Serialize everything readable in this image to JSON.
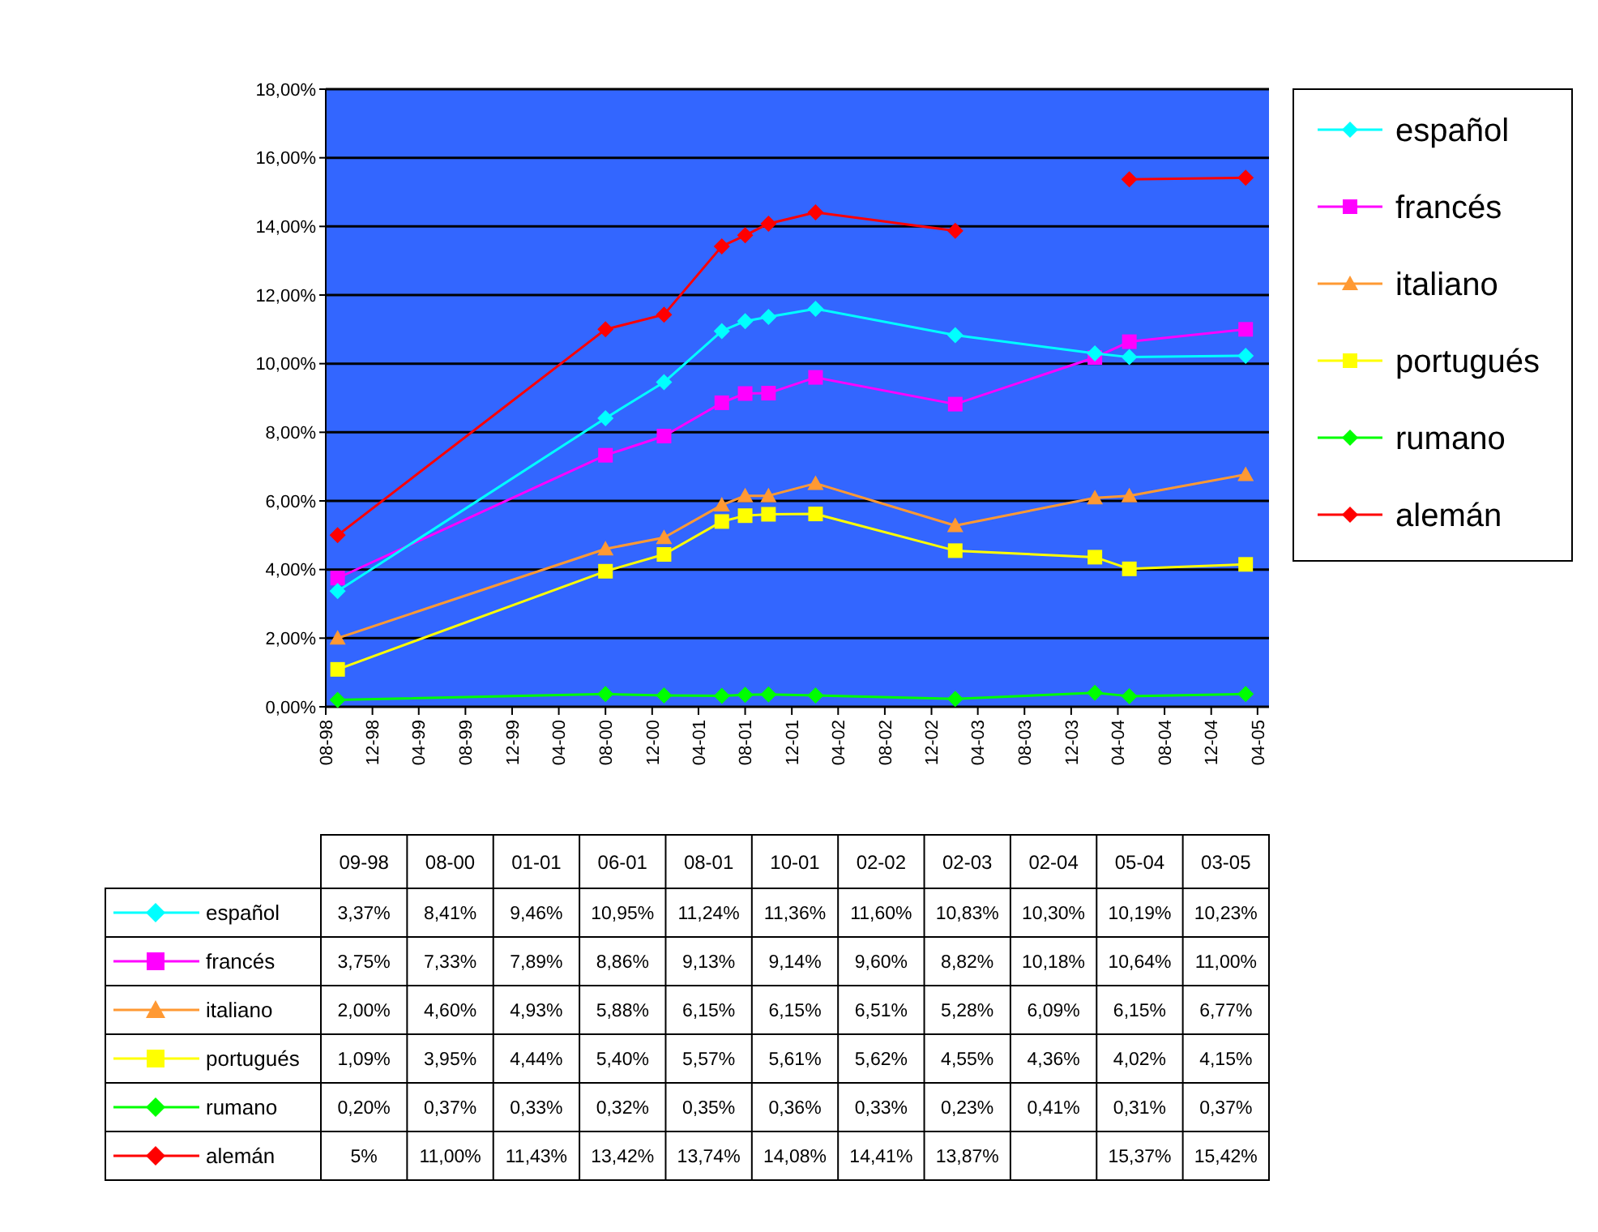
{
  "chart_data": [
    {
      "type": "line",
      "x": [
        "1998-09",
        "2000-08",
        "2001-01",
        "2001-06",
        "2001-08",
        "2001-10",
        "2002-02",
        "2003-02",
        "2004-02",
        "2004-05",
        "2005-03"
      ],
      "series": [
        {
          "name": "español",
          "color": "#00ffff",
          "marker": "diamond",
          "values": [
            3.37,
            8.41,
            9.46,
            10.95,
            11.24,
            11.36,
            11.6,
            10.83,
            10.3,
            10.19,
            10.23
          ]
        },
        {
          "name": "francés",
          "color": "#ff00ff",
          "marker": "square",
          "values": [
            3.75,
            7.33,
            7.89,
            8.86,
            9.13,
            9.14,
            9.6,
            8.82,
            10.18,
            10.64,
            11.0
          ]
        },
        {
          "name": "italiano",
          "color": "#ff9933",
          "marker": "triangle",
          "values": [
            2.0,
            4.6,
            4.93,
            5.88,
            6.15,
            6.15,
            6.51,
            5.28,
            6.09,
            6.15,
            6.77
          ]
        },
        {
          "name": "portugués",
          "color": "#ffff00",
          "marker": "square",
          "values": [
            1.09,
            3.95,
            4.44,
            5.4,
            5.57,
            5.61,
            5.62,
            4.55,
            4.36,
            4.02,
            4.15
          ]
        },
        {
          "name": "rumano",
          "color": "#00ff00",
          "marker": "diamond",
          "values": [
            0.2,
            0.37,
            0.33,
            0.32,
            0.35,
            0.36,
            0.33,
            0.23,
            0.41,
            0.31,
            0.37
          ]
        },
        {
          "name": "alemán",
          "color": "#ff0000",
          "marker": "diamond",
          "values": [
            5,
            11.0,
            11.43,
            13.42,
            13.74,
            14.08,
            14.41,
            13.87,
            null,
            15.37,
            15.42
          ]
        }
      ],
      "xlim": [
        "1998-08",
        "2005-05"
      ],
      "xticks": [
        {
          "value": "1998-08",
          "label": "08-98"
        },
        {
          "value": "1998-12",
          "label": "12-98"
        },
        {
          "value": "1999-04",
          "label": "04-99"
        },
        {
          "value": "1999-08",
          "label": "08-99"
        },
        {
          "value": "1999-12",
          "label": "12-99"
        },
        {
          "value": "2000-04",
          "label": "04-00"
        },
        {
          "value": "2000-08",
          "label": "08-00"
        },
        {
          "value": "2000-12",
          "label": "12-00"
        },
        {
          "value": "2001-04",
          "label": "04-01"
        },
        {
          "value": "2001-08",
          "label": "08-01"
        },
        {
          "value": "2001-12",
          "label": "12-01"
        },
        {
          "value": "2002-04",
          "label": "04-02"
        },
        {
          "value": "2002-08",
          "label": "08-02"
        },
        {
          "value": "2002-12",
          "label": "12-02"
        },
        {
          "value": "2003-04",
          "label": "04-03"
        },
        {
          "value": "2003-08",
          "label": "08-03"
        },
        {
          "value": "2003-12",
          "label": "12-03"
        },
        {
          "value": "2004-04",
          "label": "04-04"
        },
        {
          "value": "2004-08",
          "label": "08-04"
        },
        {
          "value": "2004-12",
          "label": "12-04"
        },
        {
          "value": "2005-04",
          "label": "04-05"
        }
      ],
      "ylim": [
        0,
        18
      ],
      "yticks": [
        {
          "value": 0,
          "label": "0,00%"
        },
        {
          "value": 2,
          "label": "2,00%"
        },
        {
          "value": 4,
          "label": "4,00%"
        },
        {
          "value": 6,
          "label": "6,00%"
        },
        {
          "value": 8,
          "label": "8,00%"
        },
        {
          "value": 10,
          "label": "10,00%"
        },
        {
          "value": 12,
          "label": "12,00%"
        },
        {
          "value": 14,
          "label": "14,00%"
        },
        {
          "value": 16,
          "label": "16,00%"
        },
        {
          "value": 18,
          "label": "18,00%"
        }
      ],
      "grid": "y",
      "legend": "right",
      "line_style": "solid"
    },
    {
      "type": "other",
      "categories": [
        "09-98",
        "08-00",
        "01-01",
        "06-01",
        "08-01",
        "10-01",
        "02-02",
        "02-03",
        "02-04",
        "05-04",
        "03-05"
      ],
      "series": [
        {
          "name": "español",
          "color": "#00ffff",
          "marker": "diamond",
          "values": [
            3.37,
            8.41,
            9.46,
            10.95,
            11.24,
            11.36,
            11.6,
            10.83,
            10.3,
            10.19,
            10.23
          ],
          "value_labels": [
            "3,37%",
            "8,41%",
            "9,46%",
            "10,95%",
            "11,24%",
            "11,36%",
            "11,60%",
            "10,83%",
            "10,30%",
            "10,19%",
            "10,23%"
          ]
        },
        {
          "name": "francés",
          "color": "#ff00ff",
          "marker": "square",
          "values": [
            3.75,
            7.33,
            7.89,
            8.86,
            9.13,
            9.14,
            9.6,
            8.82,
            10.18,
            10.64,
            11.0
          ],
          "value_labels": [
            "3,75%",
            "7,33%",
            "7,89%",
            "8,86%",
            "9,13%",
            "9,14%",
            "9,60%",
            "8,82%",
            "10,18%",
            "10,64%",
            "11,00%"
          ]
        },
        {
          "name": "italiano",
          "color": "#ff9933",
          "marker": "triangle",
          "values": [
            2.0,
            4.6,
            4.93,
            5.88,
            6.15,
            6.15,
            6.51,
            5.28,
            6.09,
            6.15,
            6.77
          ],
          "value_labels": [
            "2,00%",
            "4,60%",
            "4,93%",
            "5,88%",
            "6,15%",
            "6,15%",
            "6,51%",
            "5,28%",
            "6,09%",
            "6,15%",
            "6,77%"
          ]
        },
        {
          "name": "portugués",
          "color": "#ffff00",
          "marker": "square",
          "values": [
            1.09,
            3.95,
            4.44,
            5.4,
            5.57,
            5.61,
            5.62,
            4.55,
            4.36,
            4.02,
            4.15
          ],
          "value_labels": [
            "1,09%",
            "3,95%",
            "4,44%",
            "5,40%",
            "5,57%",
            "5,61%",
            "5,62%",
            "4,55%",
            "4,36%",
            "4,02%",
            "4,15%"
          ]
        },
        {
          "name": "rumano",
          "color": "#00ff00",
          "marker": "diamond",
          "values": [
            0.2,
            0.37,
            0.33,
            0.32,
            0.35,
            0.36,
            0.33,
            0.23,
            0.41,
            0.31,
            0.37
          ],
          "value_labels": [
            "0,20%",
            "0,37%",
            "0,33%",
            "0,32%",
            "0,35%",
            "0,36%",
            "0,33%",
            "0,23%",
            "0,41%",
            "0,31%",
            "0,37%"
          ]
        },
        {
          "name": "alemán",
          "color": "#ff0000",
          "marker": "diamond",
          "values": [
            5,
            11.0,
            11.43,
            13.42,
            13.74,
            14.08,
            14.41,
            13.87,
            null,
            15.37,
            15.42
          ],
          "value_labels": [
            "5%",
            "11,00%",
            "11,43%",
            "13,42%",
            "13,74%",
            "14,08%",
            "14,41%",
            "13,87%",
            null,
            "15,37%",
            "15,42%"
          ]
        }
      ]
    }
  ]
}
